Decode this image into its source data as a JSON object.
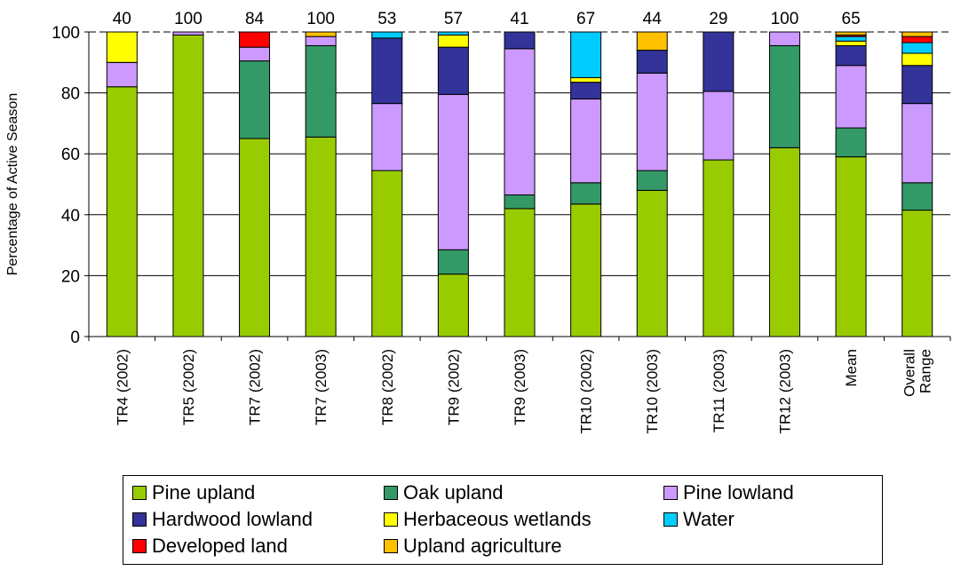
{
  "chart_data": {
    "type": "bar",
    "stacked": true,
    "ylabel": "Percentage of Active Season",
    "ylim": [
      0,
      100
    ],
    "yticks": [
      0,
      20,
      40,
      60,
      80,
      100
    ],
    "grid": true,
    "legend_position": "bottom",
    "categories": [
      "TR4 (2002)",
      "TR5 (2002)",
      "TR7 (2002)",
      "TR7 (2003)",
      "TR8 (2002)",
      "TR9 (2002)",
      "TR9 (2003)",
      "TR10 (2002)",
      "TR10 (2003)",
      "TR11 (2003)",
      "TR12 (2003)",
      "Mean",
      "Overall Range"
    ],
    "category_lines": [
      [
        "TR4 (2002)"
      ],
      [
        "TR5 (2002)"
      ],
      [
        "TR7 (2002)"
      ],
      [
        "TR7 (2003)"
      ],
      [
        "TR8 (2002)"
      ],
      [
        "TR9 (2002)"
      ],
      [
        "TR9 (2003)"
      ],
      [
        "TR10 (2002)"
      ],
      [
        "TR10 (2003)"
      ],
      [
        "TR11 (2003)"
      ],
      [
        "TR12 (2003)"
      ],
      [
        "Mean"
      ],
      [
        "Overall",
        "Range"
      ]
    ],
    "top_labels": [
      "40",
      "100",
      "84",
      "100",
      "53",
      "57",
      "41",
      "67",
      "44",
      "29",
      "100",
      "65",
      ""
    ],
    "series": [
      {
        "name": "Pine upland",
        "color": "#99cc00",
        "values": [
          82,
          99,
          65,
          65.5,
          54.5,
          20.5,
          42,
          43.5,
          48,
          58,
          62,
          59,
          41.5
        ]
      },
      {
        "name": "Oak upland",
        "color": "#339966",
        "values": [
          0,
          0,
          25.5,
          30,
          0,
          8,
          4.5,
          7,
          6.5,
          0,
          33.5,
          9.5,
          9
        ]
      },
      {
        "name": "Pine lowland",
        "color": "#cc99ff",
        "values": [
          8,
          1,
          4.5,
          3,
          22,
          51,
          48,
          27.5,
          32,
          22.5,
          4.5,
          20.5,
          26
        ]
      },
      {
        "name": "Hardwood lowland",
        "color": "#333399",
        "values": [
          0,
          0,
          0,
          0,
          21.5,
          15.5,
          5.5,
          5.5,
          7.5,
          19.5,
          0,
          6.5,
          12.5
        ]
      },
      {
        "name": "Herbaceous wetlands",
        "color": "#ffff00",
        "values": [
          10,
          0,
          0,
          0,
          0,
          4,
          0,
          1.5,
          0,
          0,
          0,
          1.5,
          4
        ]
      },
      {
        "name": "Water",
        "color": "#00ccff",
        "values": [
          0,
          0,
          0,
          0,
          2,
          1,
          0,
          15,
          0,
          0,
          0,
          1.5,
          3.5
        ]
      },
      {
        "name": "Developed land",
        "color": "#ff0000",
        "values": [
          0,
          0,
          5,
          0,
          0,
          0,
          0,
          0,
          0,
          0,
          0,
          0.5,
          2
        ]
      },
      {
        "name": "Upland agriculture",
        "color": "#ffc000",
        "values": [
          0,
          0,
          0,
          1.5,
          0,
          0,
          0,
          0,
          6,
          0,
          0,
          1,
          1.5
        ]
      }
    ]
  }
}
